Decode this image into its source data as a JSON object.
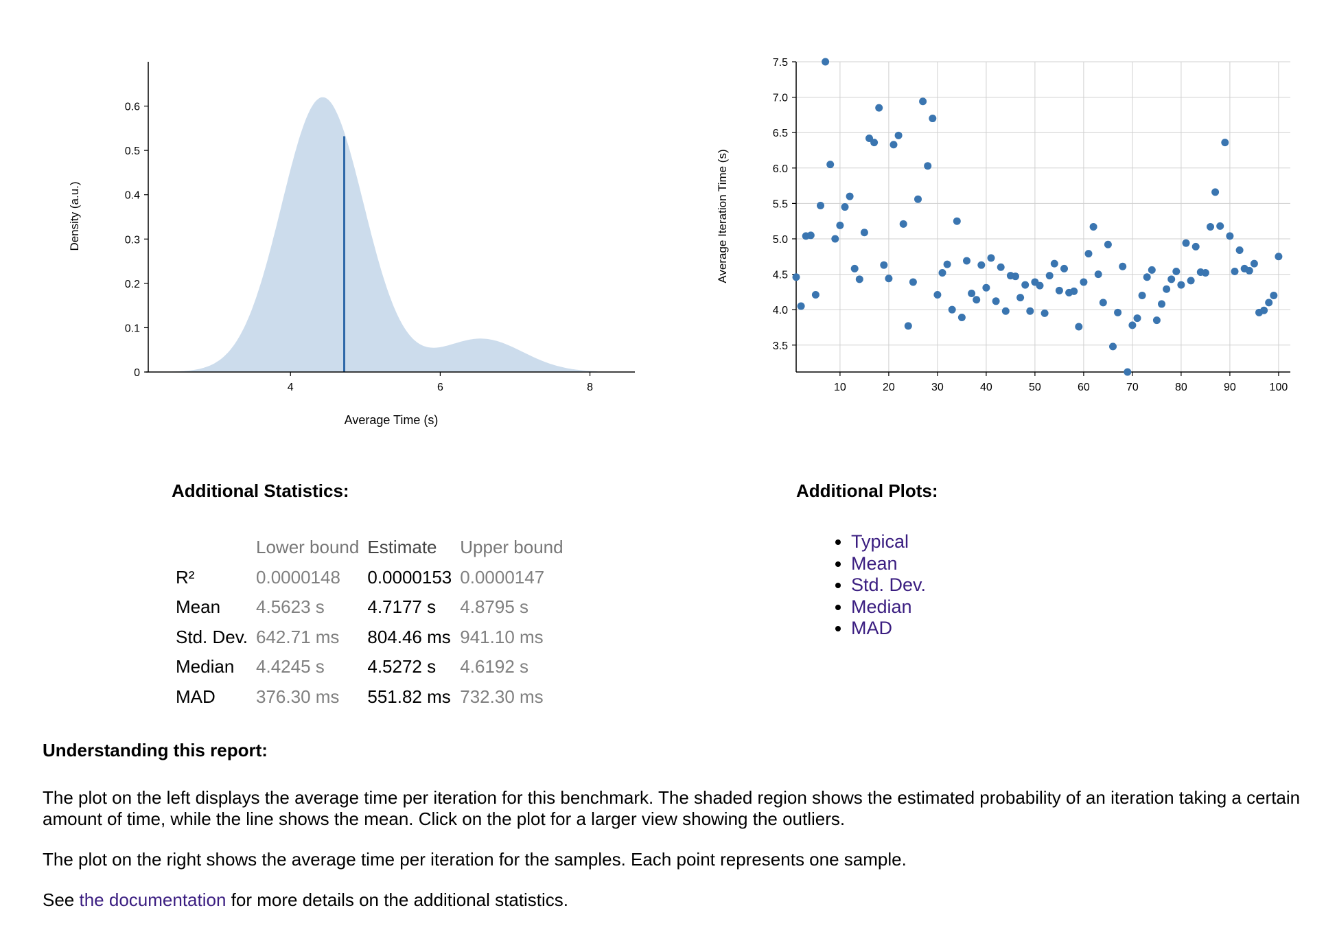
{
  "pdf_plot": {
    "xlabel": "Average Time (s)",
    "ylabel": "Density (a.u.)",
    "x_ticks": [
      "4",
      "6",
      "8"
    ],
    "y_ticks": [
      "0",
      "0.1",
      "0.2",
      "0.3",
      "0.4",
      "0.5",
      "0.6"
    ],
    "fill_color": "#ccdcec",
    "mean_line_color": "#2e68a8"
  },
  "iteration_plot": {
    "ylabel": "Average Iteration Time (s)",
    "x_ticks": [
      "10",
      "20",
      "30",
      "40",
      "50",
      "60",
      "70",
      "80",
      "90",
      "100"
    ],
    "y_ticks": [
      "3.5",
      "4.0",
      "4.5",
      "5.0",
      "5.5",
      "6.0",
      "6.5",
      "7.0",
      "7.5"
    ],
    "point_color": "#3a75b0"
  },
  "chart_data": [
    {
      "type": "area",
      "title": "",
      "xlabel": "Average Time (s)",
      "ylabel": "Density (a.u.)",
      "xlim": [
        2.1,
        8.6
      ],
      "ylim": [
        0,
        0.7
      ],
      "grid": false,
      "components": [
        {
          "weight": 1.0,
          "mean": 4.43,
          "sd": 0.55,
          "peak": 0.62
        },
        {
          "mean": 6.55,
          "sd": 0.55,
          "peak": 0.075
        }
      ],
      "x_range": [
        2.4,
        8.1
      ],
      "mean_value": 4.7177,
      "mean_density": 0.532
    },
    {
      "type": "scatter",
      "title": "",
      "xlabel": "",
      "ylabel": "Average Iteration Time (s)",
      "xlim": [
        1,
        101
      ],
      "ylim": [
        3.12,
        7.5
      ],
      "grid": true,
      "x": [
        1,
        2,
        3,
        4,
        5,
        6,
        7,
        8,
        9,
        10,
        11,
        12,
        13,
        14,
        15,
        16,
        17,
        18,
        19,
        20,
        21,
        22,
        23,
        24,
        25,
        26,
        27,
        28,
        29,
        30,
        31,
        32,
        33,
        34,
        35,
        36,
        37,
        38,
        39,
        40,
        41,
        42,
        43,
        44,
        45,
        46,
        47,
        48,
        49,
        50,
        51,
        52,
        53,
        54,
        55,
        56,
        57,
        58,
        59,
        60,
        61,
        62,
        63,
        64,
        65,
        66,
        67,
        68,
        69,
        70,
        71,
        72,
        73,
        74,
        75,
        76,
        77,
        78,
        79,
        80,
        81,
        82,
        83,
        84,
        85,
        86,
        87,
        88,
        89,
        90,
        91,
        92,
        93,
        94,
        95,
        96,
        97,
        98,
        99,
        100
      ],
      "y": [
        4.46,
        4.05,
        5.04,
        5.05,
        4.21,
        5.47,
        7.5,
        6.05,
        5.0,
        5.19,
        5.45,
        5.6,
        4.58,
        4.43,
        5.09,
        6.42,
        6.36,
        6.85,
        4.63,
        4.44,
        6.33,
        6.46,
        5.21,
        3.77,
        4.39,
        5.56,
        6.94,
        6.03,
        6.7,
        4.21,
        4.52,
        4.64,
        4.0,
        5.25,
        3.89,
        4.69,
        4.23,
        4.14,
        4.63,
        4.31,
        4.73,
        4.12,
        4.6,
        3.98,
        4.48,
        4.47,
        4.17,
        4.35,
        3.98,
        4.39,
        4.34,
        3.95,
        4.48,
        4.65,
        4.27,
        4.58,
        4.24,
        4.26,
        3.76,
        4.39,
        4.79,
        5.17,
        4.5,
        4.1,
        4.92,
        3.48,
        3.96,
        4.61,
        3.12,
        3.78,
        3.88,
        4.2,
        4.46,
        4.56,
        3.85,
        4.08,
        4.29,
        4.43,
        4.54,
        4.35,
        4.94,
        4.41,
        4.89,
        4.53,
        4.52,
        5.17,
        5.66,
        5.18,
        6.36,
        5.04,
        4.54,
        4.84,
        4.58,
        4.55,
        4.65,
        3.96,
        3.99,
        4.1,
        4.2,
        4.75
      ]
    }
  ],
  "stats": {
    "title": "Additional Statistics:",
    "headers": {
      "label": "",
      "lower": "Lower bound",
      "estimate": "Estimate",
      "upper": "Upper bound"
    },
    "rows": [
      {
        "label": "R²",
        "lower": "0.0000148",
        "estimate": "0.0000153",
        "upper": "0.0000147"
      },
      {
        "label": "Mean",
        "lower": "4.5623 s",
        "estimate": "4.7177 s",
        "upper": "4.8795 s"
      },
      {
        "label": "Std. Dev.",
        "lower": "642.71 ms",
        "estimate": "804.46 ms",
        "upper": "941.10 ms"
      },
      {
        "label": "Median",
        "lower": "4.4245 s",
        "estimate": "4.5272 s",
        "upper": "4.6192 s"
      },
      {
        "label": "MAD",
        "lower": "376.30 ms",
        "estimate": "551.82 ms",
        "upper": "732.30 ms"
      }
    ]
  },
  "additional_plots": {
    "title": "Additional Plots:",
    "links": [
      "Typical",
      "Mean",
      "Std. Dev.",
      "Median",
      "MAD"
    ]
  },
  "understanding": {
    "title": "Understanding this report:",
    "paragraph1": "The plot on the left displays the average time per iteration for this benchmark. The shaded region shows the estimated probability of an iteration taking a certain amount of time, while the line shows the mean. Click on the plot for a larger view showing the outliers.",
    "paragraph2": "The plot on the right shows the average time per iteration for the samples. Each point represents one sample.",
    "see_prefix": "See ",
    "doc_link": "the documentation",
    "see_suffix": " for more details on the additional statistics."
  }
}
